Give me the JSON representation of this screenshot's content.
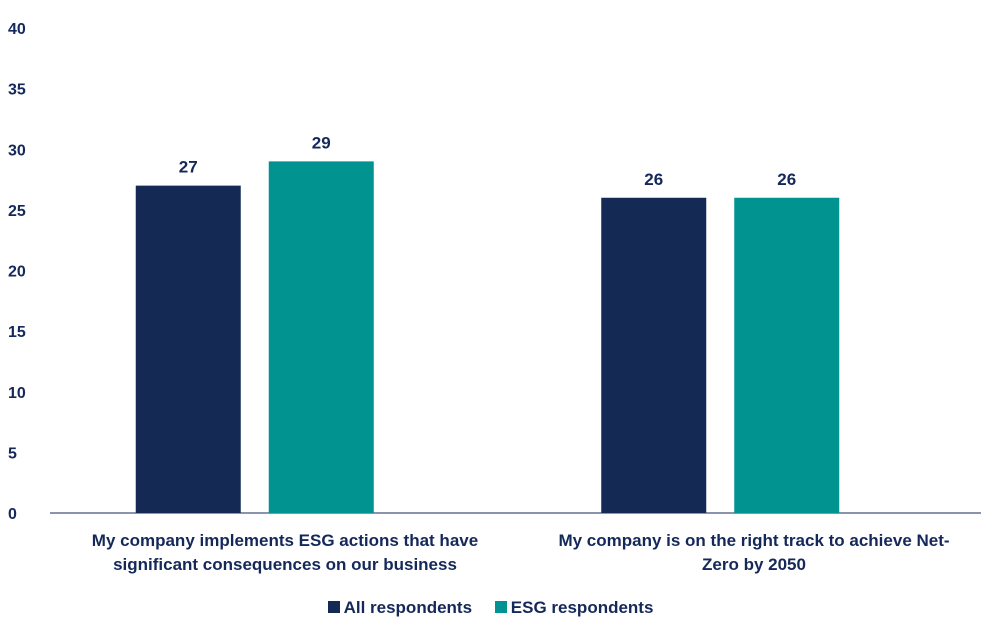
{
  "chart_data": {
    "type": "bar",
    "categories": [
      [
        "My company implements ESG actions that have",
        "significant consequences on our business"
      ],
      [
        "My company is on the right track to achieve Net-",
        "Zero by 2050"
      ]
    ],
    "series": [
      {
        "name": "All respondents",
        "color": "#142a55",
        "values": [
          27,
          26
        ]
      },
      {
        "name": "ESG respondents",
        "color": "#009390",
        "values": [
          29,
          26
        ]
      }
    ],
    "ylim": [
      0,
      40
    ],
    "yticks": [
      0,
      5,
      10,
      15,
      20,
      25,
      30,
      35,
      40
    ],
    "grid": false,
    "legend_position": "bottom"
  }
}
